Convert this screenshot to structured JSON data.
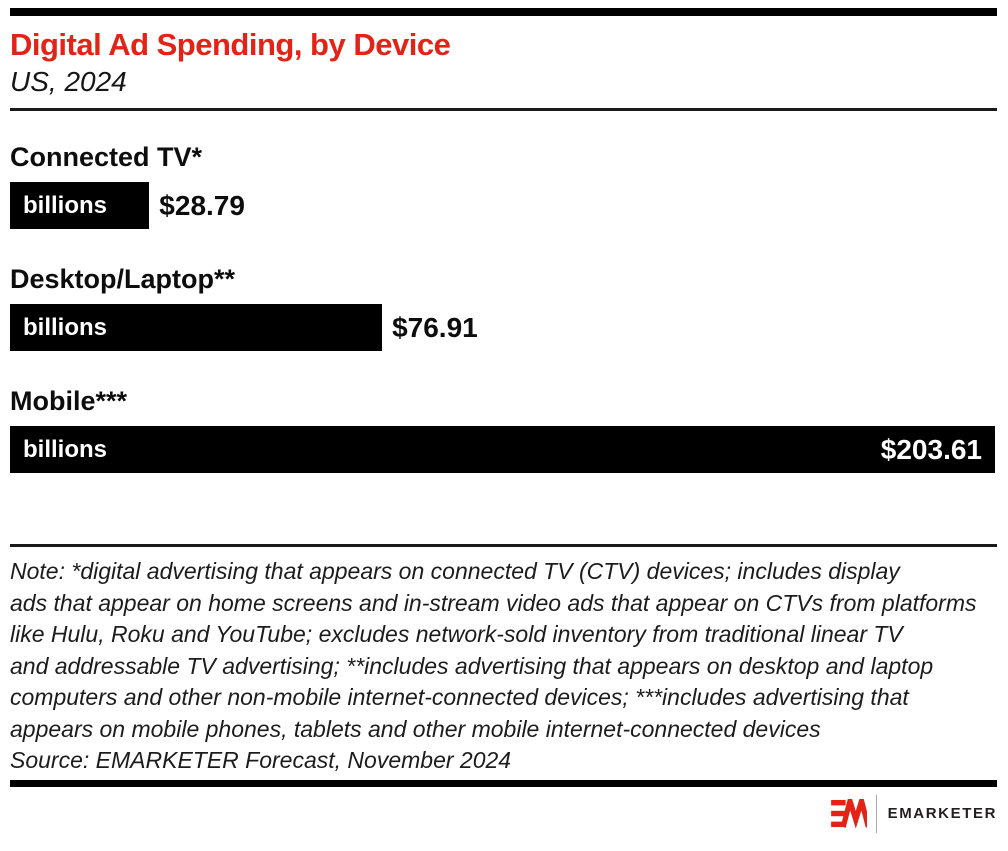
{
  "header": {
    "title": "Digital Ad Spending, by Device",
    "subtitle": "US, 2024"
  },
  "chart_data": {
    "type": "bar",
    "orientation": "horizontal",
    "title": "Digital Ad Spending, by Device",
    "subtitle": "US, 2024",
    "unit_label": "billions",
    "categories": [
      "Connected TV*",
      "Desktop/Laptop**",
      "Mobile***"
    ],
    "values": [
      28.79,
      76.91,
      203.61
    ],
    "value_labels": [
      "$28.79",
      "$76.91",
      "$203.61"
    ],
    "xlim": [
      0,
      203.61
    ],
    "grid": "off",
    "bar_color": "#000000"
  },
  "footnote": {
    "lines": [
      "Note: *digital advertising that appears on connected TV (CTV) devices; includes display",
      "ads that appear on home screens and in-stream video ads that appear on CTVs from platforms",
      "like Hulu, Roku and YouTube; excludes network-sold inventory from traditional linear TV",
      "and addressable TV advertising; **includes advertising that appears on desktop and laptop",
      "computers and other non-mobile internet-connected devices; ***includes advertising that",
      "appears on mobile phones, tablets and other mobile internet-connected devices"
    ],
    "source": "Source: EMARKETER Forecast, November 2024"
  },
  "logo": {
    "mark": "em-monogram",
    "text": "EMARKETER"
  },
  "colors": {
    "accent_red": "#e42317",
    "bar_black": "#000000",
    "logo_text": "#231f20"
  }
}
